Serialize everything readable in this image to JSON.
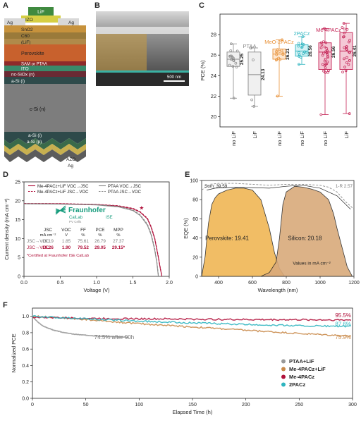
{
  "panels": {
    "a": {
      "label": "A",
      "layers": [
        "LiF",
        "IZO",
        "SnO2",
        "C60",
        "(LiF)",
        "Perovskite",
        "SAM or PTAA",
        "ITO",
        "nc-SiOx (n)",
        "a-Si (i)",
        "c-Si (n)",
        "a-Si (i)",
        "a-Si (p)",
        "AZO",
        "Ag"
      ],
      "ag_top_left": "Ag",
      "ag_top_right": "Ag",
      "colors": {
        "lif": "#3f8a3f",
        "izo": "#d6cf44",
        "sno2": "#c7923c",
        "c60": "#9a7a3a",
        "perovskite": "#c8612d",
        "sam": "#8f2a2a",
        "ito": "#3a8a6a",
        "ncsiox": "#6a2a34",
        "asi": "#2e4a4a",
        "csi": "#7d7d7d",
        "agate": "#5c5c5c"
      }
    },
    "b": {
      "label": "B",
      "scalebar": "500 nm"
    },
    "c": {
      "label": "C",
      "chart_data": {
        "type": "box",
        "ylabel": "PCE (%)",
        "ylim": [
          19,
          30
        ],
        "yticks": [
          20,
          22,
          24,
          26,
          28
        ],
        "categories": [
          "no LiF",
          "LiF",
          "no LiF",
          "no LiF",
          "no LiF",
          "LiF"
        ],
        "groups": [
          {
            "name": "PTAA",
            "color": "#888888"
          },
          {
            "name": "MeO-2PACz",
            "color": "#e8923a"
          },
          {
            "name": "2PACz",
            "color": "#2fb5c0"
          },
          {
            "name": "Me-4PACz",
            "color": "#c42456"
          }
        ],
        "boxes": [
          {
            "q1": 24.9,
            "median": 25.6,
            "q3": 26.3,
            "min": 21.8,
            "max": 27.1,
            "label": "25.25"
          },
          {
            "q1": 22.1,
            "median": 24.1,
            "q3": 26.3,
            "min": 21.0,
            "max": 26.7,
            "label": "24.13"
          },
          {
            "q1": 25.6,
            "median": 26.1,
            "q3": 26.6,
            "min": 22.0,
            "max": 27.5,
            "label": "26.21"
          },
          {
            "q1": 25.9,
            "median": 26.4,
            "q3": 27.0,
            "min": 25.1,
            "max": 27.8,
            "label": "26.56"
          },
          {
            "q1": 24.6,
            "median": 26.3,
            "q3": 27.2,
            "min": 20.2,
            "max": 28.6,
            "label": "26.56"
          },
          {
            "q1": 24.6,
            "median": 26.4,
            "q3": 28.2,
            "min": 20.3,
            "max": 29.1,
            "label": "26.41"
          }
        ]
      }
    },
    "d": {
      "label": "D",
      "legend": [
        "Me-4PACz+LiF VOC→JSC",
        "Me-4PACz+LiF JSC→VOC",
        "PTAA VOC→JSC",
        "PTAA JSC→VOC"
      ],
      "table": {
        "headers": [
          "JSC",
          "VOC",
          "FF",
          "PCE",
          "MPP"
        ],
        "units": [
          "mA cm⁻²",
          "V",
          "%",
          "%",
          "%"
        ],
        "rows": [
          {
            "label": "JSC→VOC",
            "values": [
              "19.19",
              "1.85",
              "75.61",
              "26.79",
              "27.37"
            ],
            "color": "#777777"
          },
          {
            "label": "JSC→VOC",
            "values": [
              "19.26",
              "1.90",
              "79.52",
              "29.05",
              "29.15*"
            ],
            "color": "#b0103a"
          }
        ]
      },
      "footnote": "*Certified at Fraunhofer ISE CalLab",
      "logo": {
        "name": "Fraunhofer",
        "sub": "ISE",
        "callab": "CalLab",
        "pvcells": "PV Cells"
      },
      "chart_data": {
        "type": "line",
        "xlabel": "Voltage (V)",
        "ylabel": "Current density (mA cm⁻²)",
        "xlim": [
          0,
          2.0
        ],
        "ylim": [
          0,
          25
        ],
        "xticks": [
          0.0,
          0.5,
          1.0,
          1.5,
          2.0
        ],
        "yticks": [
          0,
          5,
          10,
          15,
          20,
          25
        ],
        "series": [
          {
            "x": [
              0,
              0.5,
              1.0,
              1.3,
              1.5,
              1.6,
              1.7,
              1.75,
              1.8,
              1.85,
              1.88,
              1.9
            ],
            "y": [
              19.26,
              19.2,
              19.0,
              18.6,
              17.9,
              17.0,
              15.2,
              13.0,
              10.0,
              5.0,
              1.8,
              0
            ],
            "color": "#b0103a",
            "dash": false
          },
          {
            "x": [
              0,
              0.5,
              1.0,
              1.3,
              1.5,
              1.6,
              1.7,
              1.75,
              1.8,
              1.85,
              1.88,
              1.9
            ],
            "y": [
              19.3,
              19.25,
              19.05,
              18.7,
              18.0,
              17.1,
              15.4,
              13.2,
              10.2,
              5.2,
              2.0,
              0
            ],
            "color": "#b0103a",
            "dash": true
          },
          {
            "x": [
              0,
              0.5,
              1.0,
              1.3,
              1.5,
              1.6,
              1.7,
              1.75,
              1.8,
              1.83,
              1.85
            ],
            "y": [
              19.19,
              19.1,
              18.9,
              18.4,
              17.4,
              16.1,
              13.5,
              11.0,
              7.0,
              3.5,
              0
            ],
            "color": "#888888",
            "dash": false
          },
          {
            "x": [
              0,
              0.5,
              1.0,
              1.3,
              1.5,
              1.6,
              1.7,
              1.75,
              1.8,
              1.83,
              1.85
            ],
            "y": [
              19.2,
              19.12,
              18.95,
              18.5,
              17.6,
              16.3,
              13.8,
              11.3,
              7.4,
              3.8,
              0.4
            ],
            "color": "#888888",
            "dash": true
          }
        ]
      }
    },
    "e": {
      "label": "E",
      "sum_label": "Sum: 39.59",
      "r_label": "1-R 2.57",
      "perovskite_label": "Perovskite: 19.41",
      "silicon_label": "Silicon: 20.18",
      "units_note": "Values in mA cm⁻²",
      "colors": {
        "perovskite": "#f0b655",
        "silicon": "#d9aa7b"
      },
      "chart_data": {
        "type": "area",
        "xlabel": "Wavelength (nm)",
        "ylabel": "EQE (%)",
        "xlim": [
          300,
          1200
        ],
        "ylim": [
          0,
          100
        ],
        "xticks": [
          400,
          600,
          800,
          1000,
          1200
        ],
        "yticks": [
          0,
          20,
          40,
          60,
          80,
          100
        ],
        "series": [
          {
            "x": [
              300,
              320,
              340,
              360,
              380,
              400,
              450,
              500,
              550,
              600,
              650,
              700,
              730,
              760,
              790
            ],
            "y": [
              0,
              20,
              55,
              75,
              82,
              86,
              90,
              92,
              92,
              90,
              80,
              50,
              25,
              8,
              0
            ]
          },
          {
            "x": [
              650,
              700,
              740,
              760,
              780,
              800,
              850,
              900,
              950,
              1000,
              1050,
              1080,
              1100,
              1130,
              1160,
              1190
            ],
            "y": [
              0,
              4,
              15,
              40,
              75,
              88,
              94,
              93,
              91,
              88,
              80,
              65,
              50,
              30,
              10,
              0
            ]
          },
          {
            "x": [
              300,
              350,
              400,
              500,
              600,
              700,
              800,
              900,
              1000,
              1050,
              1100,
              1150,
              1200
            ],
            "y": [
              90,
              96,
              97,
              97,
              96,
              95,
              96,
              96,
              95,
              93,
              88,
              78,
              70
            ]
          }
        ]
      }
    },
    "f": {
      "label": "F",
      "annotation": "74.5% after 90h",
      "end_labels": [
        {
          "text": "95.5%",
          "color": "#b0103a"
        },
        {
          "text": "87.6%",
          "color": "#2fb5c0"
        },
        {
          "text": "75.9%",
          "color": "#c98a4a"
        }
      ],
      "legend": [
        {
          "name": "PTAA+LiF",
          "color": "#999999"
        },
        {
          "name": "Me-4PACz+LiF",
          "color": "#c98a4a"
        },
        {
          "name": "Me-4PACz",
          "color": "#b0103a"
        },
        {
          "name": "2PACz",
          "color": "#2fb5c0"
        }
      ],
      "chart_data": {
        "type": "line",
        "xlabel": "Elapsed Time (h)",
        "ylabel": "Normalized PCE",
        "xlim": [
          0,
          300
        ],
        "ylim": [
          0,
          1.1
        ],
        "xticks": [
          0,
          50,
          100,
          150,
          200,
          250,
          300
        ],
        "yticks": [
          0.0,
          0.2,
          0.4,
          0.6,
          0.8,
          1.0
        ],
        "series": [
          {
            "name": "PTAA+LiF",
            "x": [
              0,
              2,
              5,
              10,
              20,
              30,
              40,
              50,
              60,
              70,
              80,
              90
            ],
            "y": [
              1.0,
              0.97,
              0.93,
              0.88,
              0.83,
              0.8,
              0.78,
              0.77,
              0.76,
              0.755,
              0.75,
              0.745
            ],
            "color": "#999999"
          },
          {
            "name": "Me-4PACz+LiF",
            "x": [
              0,
              20,
              50,
              100,
              150,
              200,
              250,
              300
            ],
            "y": [
              1.0,
              0.99,
              0.96,
              0.91,
              0.87,
              0.83,
              0.79,
              0.759
            ],
            "color": "#c98a4a"
          },
          {
            "name": "Me-4PACz",
            "x": [
              0,
              50,
              100,
              150,
              200,
              250,
              300
            ],
            "y": [
              0.99,
              0.975,
              0.97,
              0.965,
              0.96,
              0.958,
              0.955
            ],
            "color": "#b0103a"
          },
          {
            "name": "2PACz",
            "x": [
              0,
              50,
              100,
              150,
              200,
              250,
              300
            ],
            "y": [
              1.0,
              0.97,
              0.94,
              0.92,
              0.9,
              0.885,
              0.876
            ],
            "color": "#2fb5c0"
          }
        ]
      }
    }
  }
}
